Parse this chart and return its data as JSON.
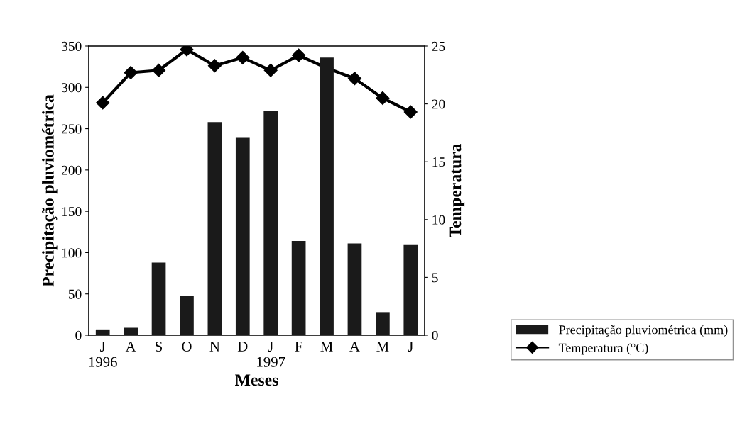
{
  "chart_data": {
    "type": "bar",
    "xlabel": "Meses",
    "ylabel": "Precipitação pluviométrica",
    "y2label": "Temperatura",
    "categories": [
      "J\n1996",
      "A",
      "S",
      "O",
      "N",
      "D",
      "J\n1997",
      "F",
      "M",
      "A",
      "M",
      "J"
    ],
    "series": [
      {
        "name": "Precipitação pluviométrica (mm)",
        "color": "#1a1a1a",
        "values": [
          7,
          9,
          88,
          48,
          258,
          239,
          271,
          114,
          336,
          111,
          28,
          110
        ]
      },
      {
        "name": "Temperatura (°C)",
        "type": "line",
        "axis": "y2",
        "color": "#000000",
        "marker": "diamond",
        "values": [
          20.1,
          22.7,
          22.9,
          24.7,
          23.3,
          24.0,
          22.9,
          24.2,
          23.1,
          22.2,
          20.5,
          19.3
        ]
      }
    ],
    "ylim": [
      0,
      350
    ],
    "yticks": [
      0,
      50,
      100,
      150,
      200,
      250,
      300,
      350
    ],
    "y2lim": [
      0,
      25
    ],
    "y2ticks": [
      0,
      5,
      10,
      15,
      20,
      25
    ],
    "grid": false,
    "legend": "bottom right"
  }
}
